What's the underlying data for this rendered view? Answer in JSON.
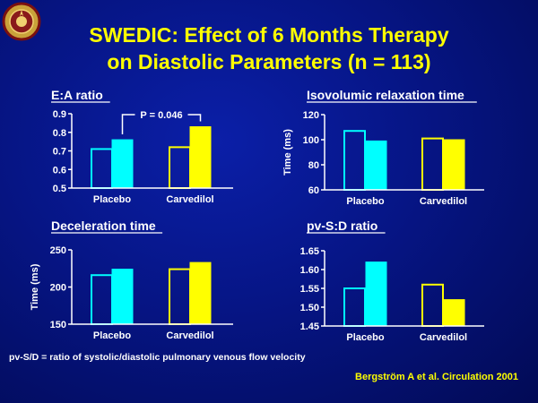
{
  "title": {
    "line1": "SWEDIC: Effect of 6 Months Therapy",
    "line2": "on Diastolic Parameters (n = 113)"
  },
  "footnote": "pv-S/D = ratio of systolic/diastolic pulmonary venous flow velocity",
  "citation": "Bergström A et al. Circulation 2001",
  "colors": {
    "background": "#061585",
    "title": "#ffff00",
    "cyan": "#00ffff",
    "yellow": "#ffff00",
    "text": "#ffffff"
  },
  "chart_data": [
    {
      "type": "bar",
      "title": "E:A ratio",
      "ylabel": "",
      "categories": [
        "Placebo",
        "Carvedilol"
      ],
      "ylim": [
        0.5,
        0.9
      ],
      "yticks": [
        "0.9",
        "0.8",
        "0.7",
        "0.6",
        "0.5"
      ],
      "series": [
        {
          "values": [
            0.71,
            0.72
          ]
        },
        {
          "values": [
            0.76,
            0.83
          ]
        }
      ],
      "annotation": "P = 0.046"
    },
    {
      "type": "bar",
      "title": "Isovolumic relaxation time",
      "ylabel": "Time (ms)",
      "categories": [
        "Placebo",
        "Carvedilol"
      ],
      "ylim": [
        60,
        120
      ],
      "yticks": [
        "120",
        "100",
        "80",
        "60"
      ],
      "series": [
        {
          "values": [
            107,
            101
          ]
        },
        {
          "values": [
            99,
            100
          ]
        }
      ]
    },
    {
      "type": "bar",
      "title": "Deceleration time",
      "ylabel": "Time (ms)",
      "categories": [
        "Placebo",
        "Carvedilol"
      ],
      "ylim": [
        150,
        250
      ],
      "yticks": [
        "250",
        "200",
        "150"
      ],
      "series": [
        {
          "values": [
            216,
            224
          ]
        },
        {
          "values": [
            224,
            233
          ]
        }
      ]
    },
    {
      "type": "bar",
      "title": "pv-S:D ratio",
      "ylabel": "",
      "categories": [
        "Placebo",
        "Carvedilol"
      ],
      "ylim": [
        1.45,
        1.65
      ],
      "yticks": [
        "1.65",
        "1.60",
        "1.55",
        "1.50",
        "1.45"
      ],
      "series": [
        {
          "values": [
            1.55,
            1.56
          ]
        },
        {
          "values": [
            1.62,
            1.52
          ]
        }
      ]
    }
  ]
}
